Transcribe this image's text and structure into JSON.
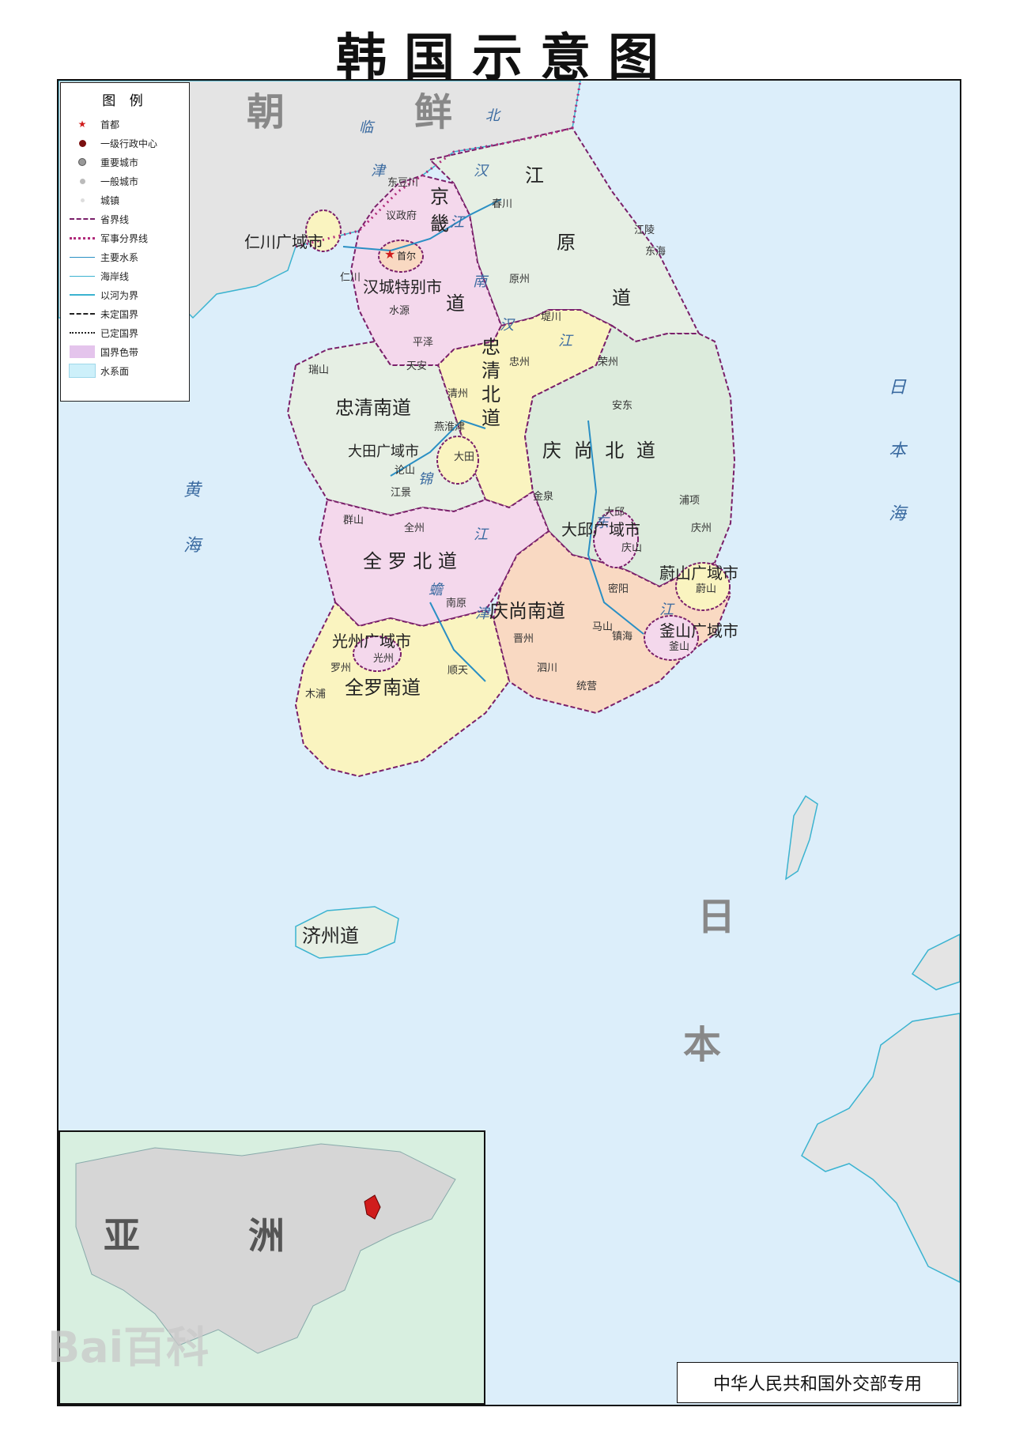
{
  "title": "韩国示意图",
  "legend": {
    "heading": "图 例",
    "items": [
      {
        "label": "首都",
        "symbol": "capital-star-icon"
      },
      {
        "label": "一级行政中心",
        "symbol": "admin-center-dot-icon"
      },
      {
        "label": "重要城市",
        "symbol": "major-city-dot-icon"
      },
      {
        "label": "一般城市",
        "symbol": "city-dot-icon"
      },
      {
        "label": "城镇",
        "symbol": "town-dot-icon"
      },
      {
        "label": "省界线",
        "symbol": "province-boundary-line"
      },
      {
        "label": "军事分界线",
        "symbol": "military-demarcation-line"
      },
      {
        "label": "主要水系",
        "symbol": "main-river-line"
      },
      {
        "label": "海岸线",
        "symbol": "coastline-line"
      },
      {
        "label": "以河为界",
        "symbol": "river-boundary-line"
      },
      {
        "label": "未定国界",
        "symbol": "undetermined-border-line"
      },
      {
        "label": "已定国界",
        "symbol": "defined-border-line"
      },
      {
        "label": "国界色带",
        "symbol": "border-color-band-swatch"
      },
      {
        "label": "水系面",
        "symbol": "water-area-swatch"
      }
    ]
  },
  "regions": {
    "north_country_part1": "朝",
    "north_country_part2": "鲜",
    "japan_part1": "日",
    "japan_part2": "本",
    "sea_yellow_1": "黄",
    "sea_yellow_2": "海",
    "sea_japan_1": "日",
    "sea_japan_2": "本",
    "sea_japan_3": "海",
    "rivers": {
      "linjin_1": "临",
      "linjin_2": "津",
      "bei": "北",
      "han_1": "汉",
      "han_2": "江",
      "nan_han_1": "南",
      "nan_han_2": "汉",
      "nan_han_3": "江",
      "jin_1": "锦",
      "jin_2": "江",
      "rong_1": "蟾",
      "rong_2": "津",
      "rong_3": "江",
      "luodong_1": "东",
      "luodong_2": "江",
      "wan_jiang": "江"
    }
  },
  "provinces": [
    {
      "name_line1": "京",
      "name_line2": "畿",
      "name_line3": "道",
      "key": "gyeonggi",
      "color": "#f4d8ec"
    },
    {
      "name_line1": "江",
      "name_line2": "原",
      "name_line3": "道",
      "key": "gangwon",
      "color": "#e6efe4"
    },
    {
      "name_line1": "忠",
      "name_line2": "清",
      "name_line3": "北",
      "name_line4": "道",
      "key": "chungbuk",
      "color": "#faf4c0"
    },
    {
      "name": "忠清南道",
      "key": "chungnam",
      "color": "#e6efe4"
    },
    {
      "name": "庆 尚 北 道",
      "key": "gyeongbuk",
      "color": "#dcebdc"
    },
    {
      "name": "全 罗 北 道",
      "key": "jeonbuk",
      "color": "#f4d8ec"
    },
    {
      "name": "庆尚南道",
      "key": "gyeongnam",
      "color": "#f9d9c2"
    },
    {
      "name": "全罗南道",
      "key": "jeonnam",
      "color": "#faf4c0"
    },
    {
      "name": "济州道",
      "key": "jeju",
      "color": "#e6efe4"
    }
  ],
  "metros": [
    {
      "name": "汉城特别市"
    },
    {
      "name": "仁川广域市"
    },
    {
      "name": "大田广域市"
    },
    {
      "name": "大邱广域市"
    },
    {
      "name": "蔚山广域市"
    },
    {
      "name": "釜山广域市"
    },
    {
      "name": "光州广域市"
    }
  ],
  "cities": [
    "东豆川",
    "议政府",
    "首尔",
    "仁川",
    "水源",
    "平泽",
    "天安",
    "瑞山",
    "清州",
    "燕淮津",
    "大田",
    "论山",
    "江景",
    "群山",
    "全州",
    "南原",
    "罗州",
    "光州",
    "木浦",
    "顺天",
    "晋州",
    "泗川",
    "统营",
    "马山",
    "镇海",
    "釜山",
    "蔚山",
    "密阳",
    "庆山",
    "大邱",
    "金泉",
    "安东",
    "浦项",
    "庆州",
    "荣州",
    "忠州",
    "堤川",
    "原州",
    "春川",
    "江陵",
    "东海"
  ],
  "inset": {
    "label_1": "亚",
    "label_2": "洲"
  },
  "footer_stamp": "中华人民共和国外交部专用",
  "watermark": "Bai百科",
  "colors": {
    "sea": "#dceefa",
    "coast": "#3bb3d0",
    "province_border": "#7a1f6a",
    "demarcation": "#b02a7a",
    "capital": "#d01c1c"
  }
}
